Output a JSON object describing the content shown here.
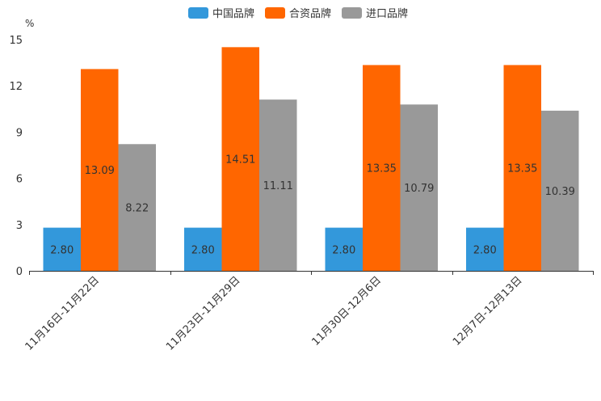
{
  "chart_data": {
    "type": "bar",
    "title": "",
    "xlabel": "",
    "ylabel": "%",
    "ylim": [
      0,
      15
    ],
    "yticks": [
      0,
      3,
      6,
      9,
      12,
      15
    ],
    "ytick_labels": [
      "0",
      "3",
      "6",
      "9",
      "12",
      "15"
    ],
    "grid": false,
    "legend_position": "top",
    "categories": [
      "11月16日-11月22日",
      "11月23日-11月29日",
      "11月30日-12月6日",
      "12月7日-12月13日"
    ],
    "series": [
      {
        "name": "中国品牌",
        "color": "#3398DB",
        "values": [
          2.8,
          2.8,
          2.8,
          2.8
        ],
        "labels": [
          "2.80",
          "2.80",
          "2.80",
          "2.80"
        ]
      },
      {
        "name": "合资品牌",
        "color": "#FF6600",
        "values": [
          13.09,
          14.51,
          13.35,
          13.35
        ],
        "labels": [
          "13.09",
          "14.51",
          "13.35",
          "13.35"
        ]
      },
      {
        "name": "进口品牌",
        "color": "#999999",
        "values": [
          8.22,
          11.11,
          10.79,
          10.39
        ],
        "labels": [
          "8.22",
          "11.11",
          "10.79",
          "10.39"
        ]
      }
    ]
  }
}
